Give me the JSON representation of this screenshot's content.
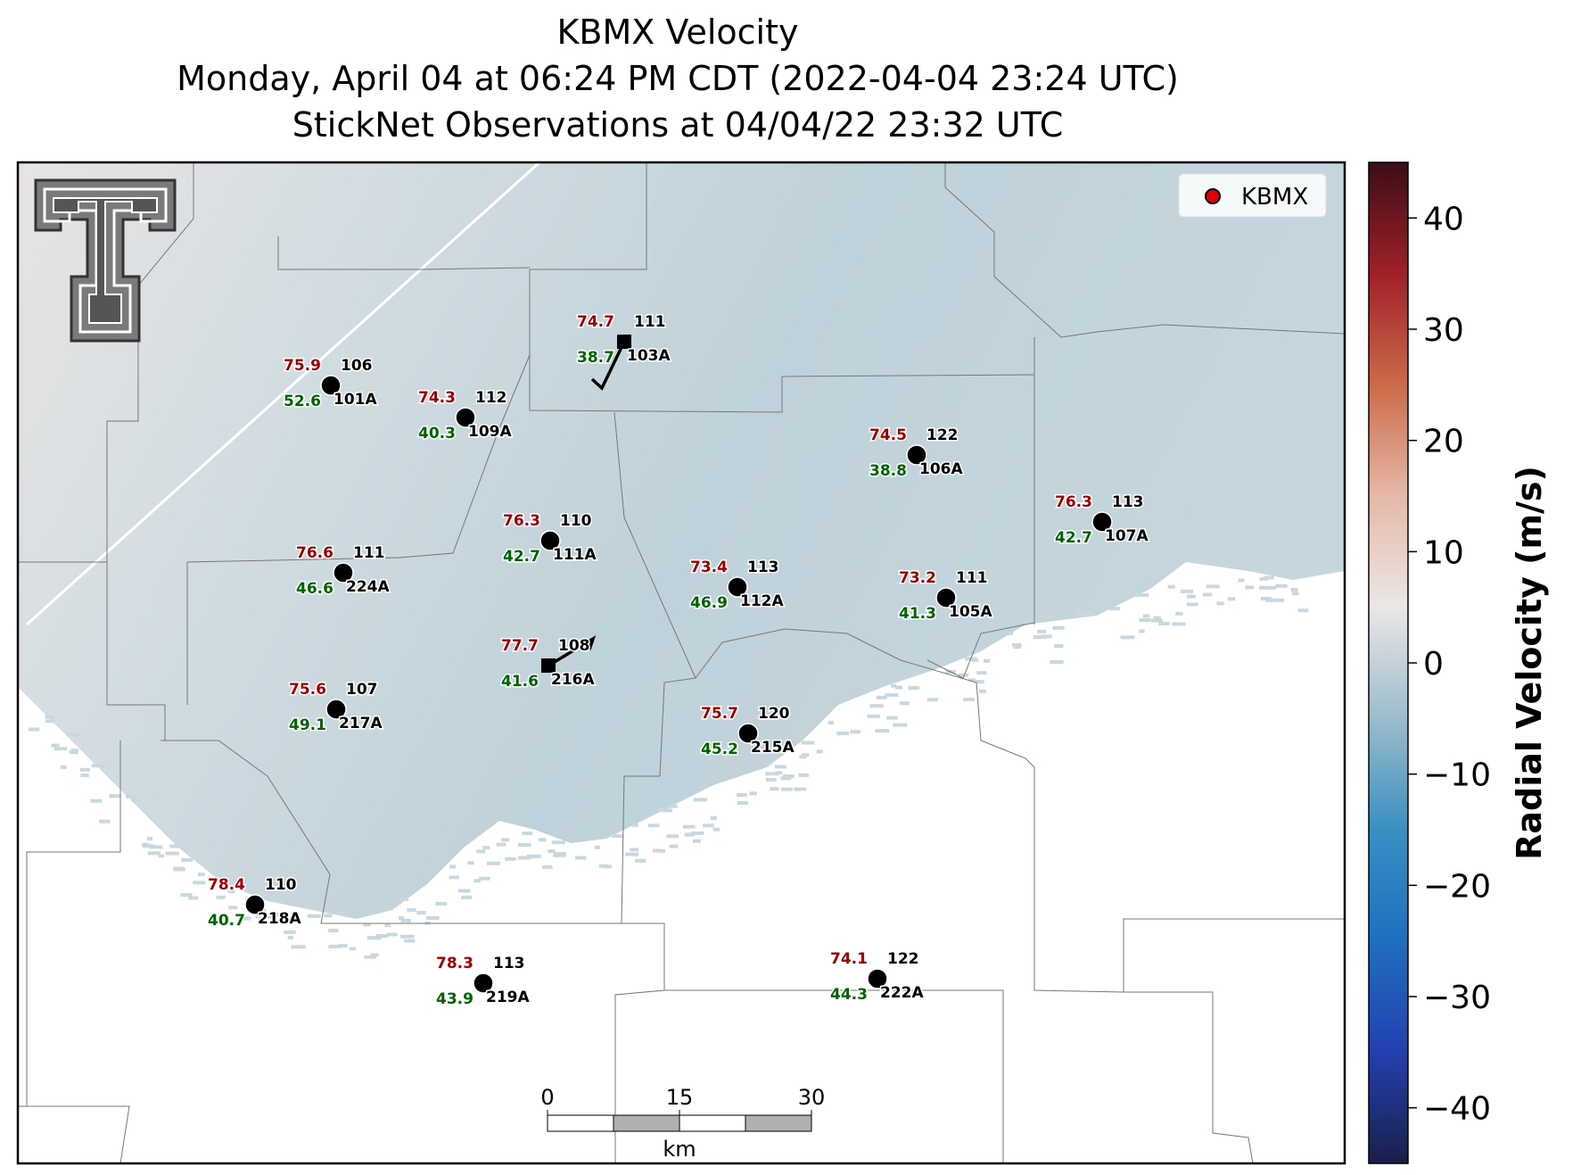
{
  "title": {
    "line1": "KBMX Velocity",
    "line2": "Monday, April 04 at 06:24 PM CDT (2022-04-04 23:24 UTC)",
    "line3": "StickNet Observations at 04/04/22 23:32 UTC"
  },
  "legend": {
    "label": "KBMX",
    "marker_color": "#dd0000"
  },
  "colorbar": {
    "label": "Radial Velocity (m/s)",
    "ticks": [
      "40",
      "30",
      "20",
      "10",
      "0",
      "−10",
      "−20",
      "−30",
      "−40"
    ],
    "range": [
      -45,
      45
    ],
    "colors": [
      "#1a1f4a",
      "#2340b0",
      "#1f6fc0",
      "#3a8fc2",
      "#9bbccb",
      "#ebe7e6",
      "#e6b8a8",
      "#cc6a48",
      "#a0202a",
      "#3c0d15"
    ]
  },
  "scalebar": {
    "ticks": [
      "0",
      "15",
      "30"
    ],
    "unit": "km"
  },
  "stations": [
    {
      "id": "101A",
      "temp": "75.9",
      "dew": "52.6",
      "dir": "106",
      "marker": "circle",
      "barb": false
    },
    {
      "id": "109A",
      "temp": "74.3",
      "dew": "40.3",
      "dir": "112",
      "marker": "circle",
      "barb": false
    },
    {
      "id": "103A",
      "temp": "74.7",
      "dew": "38.7",
      "dir": "111",
      "marker": "square",
      "barb": true
    },
    {
      "id": "106A",
      "temp": "74.5",
      "dew": "38.8",
      "dir": "122",
      "marker": "circle",
      "barb": false
    },
    {
      "id": "107A",
      "temp": "76.3",
      "dew": "42.7",
      "dir": "113",
      "marker": "circle",
      "barb": false
    },
    {
      "id": "111A",
      "temp": "76.3",
      "dew": "42.7",
      "dir": "110",
      "marker": "circle",
      "barb": false
    },
    {
      "id": "224A",
      "temp": "76.6",
      "dew": "46.6",
      "dir": "111",
      "marker": "circle",
      "barb": false
    },
    {
      "id": "112A",
      "temp": "73.4",
      "dew": "46.9",
      "dir": "113",
      "marker": "circle",
      "barb": false
    },
    {
      "id": "105A",
      "temp": "73.2",
      "dew": "41.3",
      "dir": "111",
      "marker": "circle",
      "barb": false
    },
    {
      "id": "216A",
      "temp": "77.7",
      "dew": "41.6",
      "dir": "108",
      "marker": "square",
      "barb": true
    },
    {
      "id": "217A",
      "temp": "75.6",
      "dew": "49.1",
      "dir": "107",
      "marker": "circle",
      "barb": false
    },
    {
      "id": "215A",
      "temp": "75.7",
      "dew": "45.2",
      "dir": "120",
      "marker": "circle",
      "barb": false
    },
    {
      "id": "218A",
      "temp": "78.4",
      "dew": "40.7",
      "dir": "110",
      "marker": "circle",
      "barb": false
    },
    {
      "id": "219A",
      "temp": "78.3",
      "dew": "43.9",
      "dir": "113",
      "marker": "circle",
      "barb": false
    },
    {
      "id": "222A",
      "temp": "74.1",
      "dew": "44.3",
      "dir": "122",
      "marker": "circle",
      "barb": false
    }
  ]
}
